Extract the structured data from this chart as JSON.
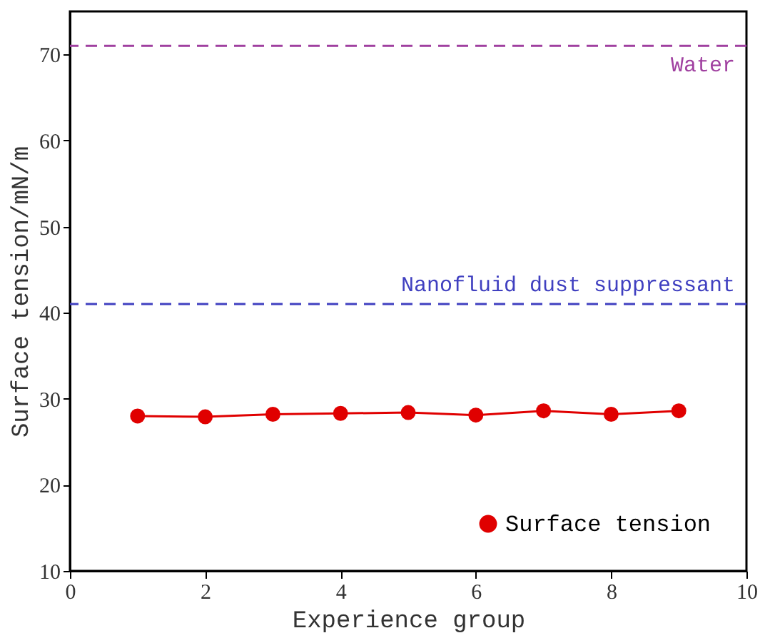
{
  "chart_data": {
    "type": "line",
    "xlabel": "Experience group",
    "ylabel": "Surface tension/mN/m",
    "x": [
      1,
      2,
      3,
      4,
      5,
      6,
      7,
      8,
      9
    ],
    "series": [
      {
        "name": "Surface tension",
        "color": "#e00000",
        "values": [
          28.0,
          27.9,
          28.2,
          28.3,
          28.4,
          28.1,
          28.6,
          28.2,
          28.6
        ]
      }
    ],
    "xlim": [
      0,
      10
    ],
    "xticks": [
      0,
      2,
      4,
      6,
      8,
      10
    ],
    "ylim": [
      10,
      75
    ],
    "yticks": [
      10,
      20,
      30,
      40,
      50,
      60,
      70
    ],
    "ref_lines": [
      {
        "axis": "y",
        "value": 71,
        "label": "Water",
        "color": "#a040a0",
        "line_style": "dashed"
      },
      {
        "axis": "y",
        "value": 41,
        "label": "Nanofluid dust suppressant",
        "color": "#4040c0",
        "line_style": "dashed"
      }
    ],
    "marker": "circle",
    "line_style": "solid",
    "legend": "bottom right",
    "grid": false
  }
}
